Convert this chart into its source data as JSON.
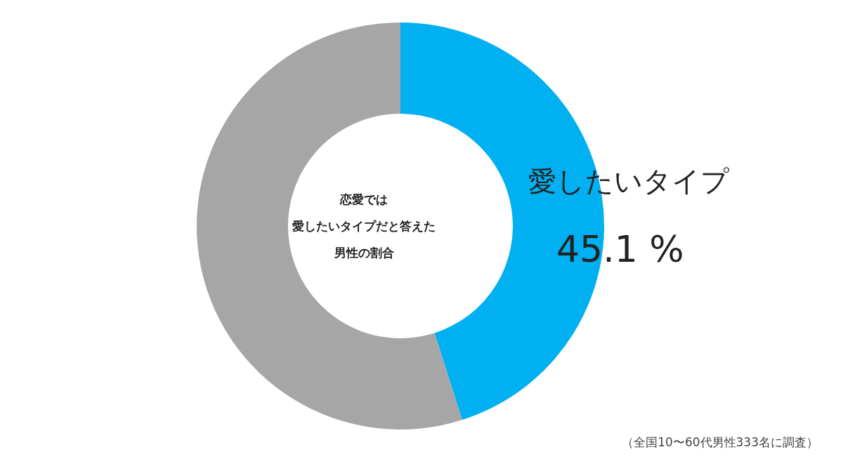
{
  "chart_data": {
    "type": "donut",
    "title": "恋愛では",
    "subtitle": "愛したいタイプだと答えた男性の割合",
    "categories": [
      "愛したいタイプ",
      null
    ],
    "values": [
      45.1,
      54.9
    ],
    "colors": [
      "#00b0f0",
      "#a6a6a6"
    ],
    "value_labels": [
      "45.1 %",
      null
    ],
    "legend": false,
    "annotations": [
      "（全国10〜60代男性333名に調査）"
    ]
  }
}
